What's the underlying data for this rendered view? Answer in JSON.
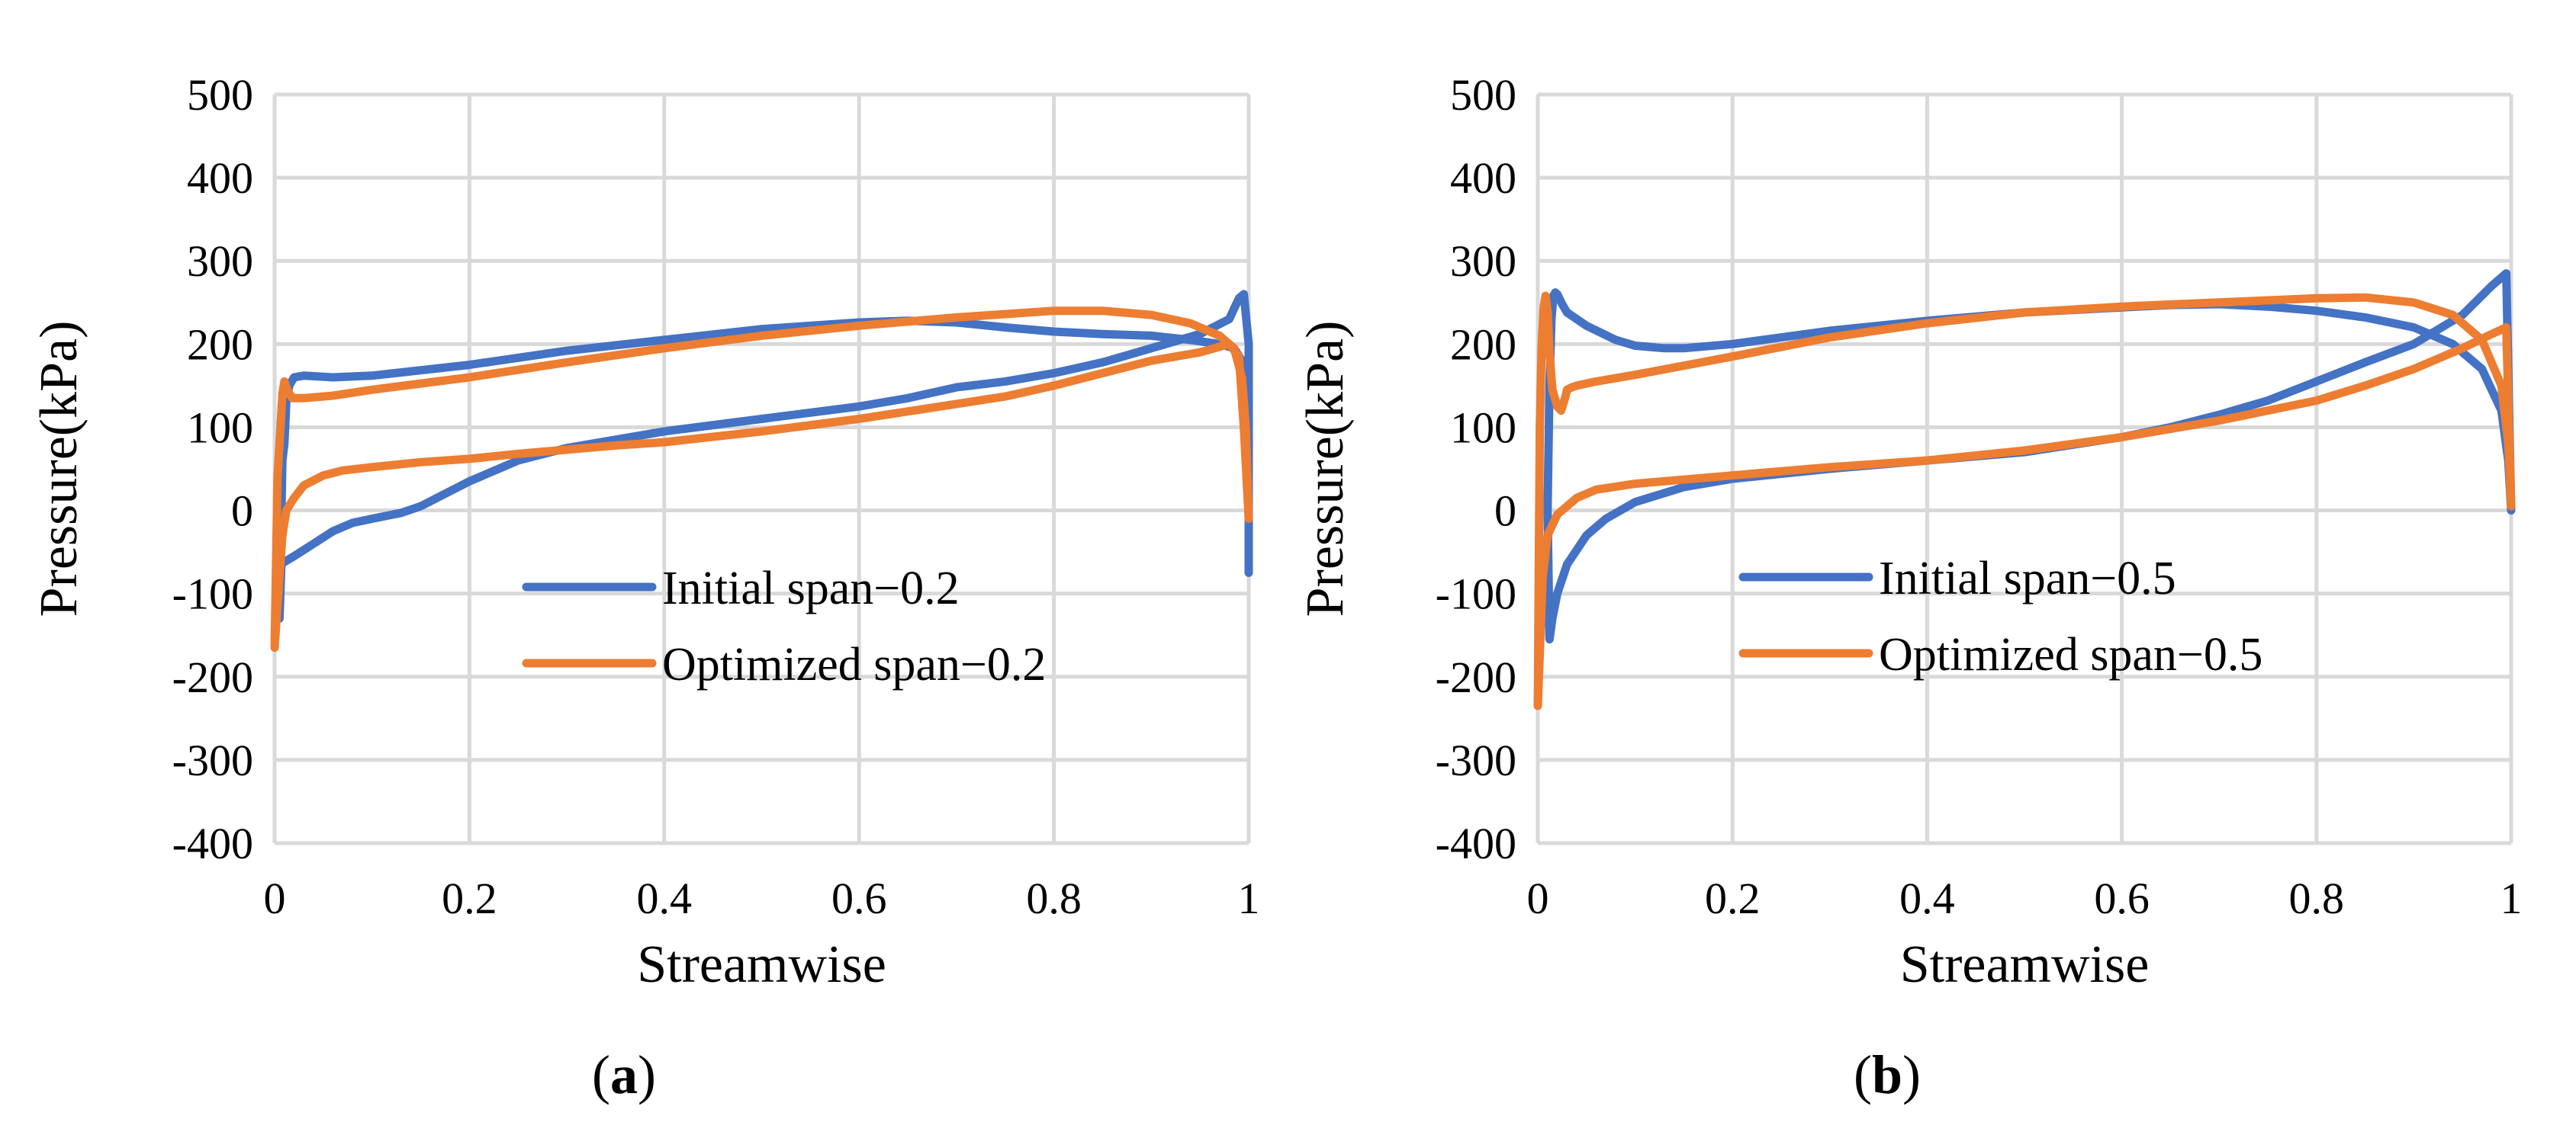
{
  "colors": {
    "initial": "#4472C4",
    "optimized": "#ED7D31",
    "grid": "#d9d9d9"
  },
  "chart_data": [
    {
      "type": "line",
      "panel_label": "a",
      "xlabel": "Streamwise",
      "ylabel": "Pressure(kPa)",
      "xlim": [
        0,
        1
      ],
      "ylim": [
        -400,
        500
      ],
      "xticks": [
        0,
        0.2,
        0.4,
        0.6,
        0.8,
        1
      ],
      "xtick_labels": [
        "0",
        "0.2",
        "0.4",
        "0.6",
        "0.8",
        "1"
      ],
      "yticks": [
        -400,
        -300,
        -200,
        -100,
        0,
        100,
        200,
        300,
        400,
        500
      ],
      "ytick_labels": [
        "-400",
        "-300",
        "-200",
        "-100",
        "0",
        "100",
        "200",
        "300",
        "400",
        "500"
      ],
      "grid": true,
      "legend_position": "center-right",
      "series": [
        {
          "name": "Initial span−0.2",
          "color": "#4472C4",
          "x": [
            0.005,
            0.008,
            0.01,
            0.012,
            0.015,
            0.02,
            0.03,
            0.06,
            0.1,
            0.2,
            0.3,
            0.4,
            0.5,
            0.6,
            0.65,
            0.7,
            0.75,
            0.8,
            0.85,
            0.9,
            0.94,
            0.97,
            0.985,
            0.993,
            0.997,
            1.0,
            1.0,
            1.0,
            0.995,
            0.99,
            0.98,
            0.95,
            0.9,
            0.85,
            0.8,
            0.75,
            0.7,
            0.65,
            0.6,
            0.5,
            0.4,
            0.35,
            0.3,
            0.25,
            0.2,
            0.15,
            0.13,
            0.1,
            0.08,
            0.06,
            0.04,
            0.02,
            0.01,
            0.007,
            0.005
          ],
          "y": [
            -130,
            60,
            80,
            130,
            150,
            160,
            162,
            160,
            162,
            175,
            192,
            205,
            218,
            226,
            228,
            226,
            220,
            215,
            212,
            210,
            205,
            200,
            195,
            180,
            130,
            0,
            -75,
            200,
            260,
            255,
            230,
            212,
            195,
            178,
            165,
            155,
            148,
            135,
            125,
            110,
            95,
            85,
            75,
            60,
            35,
            5,
            -3,
            -10,
            -15,
            -25,
            -40,
            -55,
            -62,
            -65,
            -130
          ]
        },
        {
          "name": "Optimized span−0.2",
          "color": "#ED7D31",
          "x": [
            0.0,
            0.003,
            0.006,
            0.008,
            0.01,
            0.013,
            0.018,
            0.03,
            0.06,
            0.1,
            0.2,
            0.3,
            0.4,
            0.5,
            0.6,
            0.7,
            0.8,
            0.85,
            0.9,
            0.94,
            0.97,
            0.985,
            0.993,
            0.997,
            1.0,
            0.995,
            0.99,
            0.98,
            0.95,
            0.9,
            0.85,
            0.8,
            0.75,
            0.7,
            0.6,
            0.5,
            0.4,
            0.35,
            0.3,
            0.25,
            0.2,
            0.15,
            0.1,
            0.07,
            0.05,
            0.03,
            0.02,
            0.012,
            0.008,
            0.005,
            0.0
          ],
          "y": [
            -165,
            40,
            100,
            140,
            155,
            145,
            135,
            135,
            138,
            145,
            160,
            178,
            195,
            210,
            222,
            232,
            240,
            240,
            235,
            225,
            210,
            195,
            160,
            100,
            -10,
            100,
            185,
            200,
            190,
            180,
            165,
            150,
            137,
            128,
            110,
            95,
            82,
            78,
            73,
            68,
            62,
            58,
            52,
            48,
            42,
            30,
            15,
            0,
            -30,
            -80,
            -165
          ]
        }
      ]
    },
    {
      "type": "line",
      "panel_label": "b",
      "xlabel": "Streamwise",
      "ylabel": "Pressure(kPa)",
      "xlim": [
        0,
        1
      ],
      "ylim": [
        -400,
        500
      ],
      "xticks": [
        0,
        0.2,
        0.4,
        0.6,
        0.8,
        1
      ],
      "xtick_labels": [
        "0",
        "0.2",
        "0.4",
        "0.6",
        "0.8",
        "1"
      ],
      "yticks": [
        -400,
        -300,
        -200,
        -100,
        0,
        100,
        200,
        300,
        400,
        500
      ],
      "ytick_labels": [
        "-400",
        "-300",
        "-200",
        "-100",
        "0",
        "100",
        "200",
        "300",
        "400",
        "500"
      ],
      "grid": true,
      "legend_position": "center",
      "series": [
        {
          "name": "Initial span−0.5",
          "color": "#4472C4",
          "x": [
            0.01,
            0.012,
            0.014,
            0.016,
            0.018,
            0.02,
            0.025,
            0.03,
            0.05,
            0.08,
            0.1,
            0.13,
            0.15,
            0.2,
            0.3,
            0.4,
            0.5,
            0.6,
            0.65,
            0.7,
            0.75,
            0.8,
            0.85,
            0.9,
            0.94,
            0.97,
            0.99,
            0.997,
            1.0,
            0.995,
            0.98,
            0.95,
            0.9,
            0.85,
            0.8,
            0.75,
            0.7,
            0.65,
            0.6,
            0.5,
            0.4,
            0.3,
            0.2,
            0.15,
            0.1,
            0.07,
            0.05,
            0.03,
            0.02,
            0.015,
            0.012,
            0.01
          ],
          "y": [
            0,
            150,
            230,
            258,
            262,
            260,
            248,
            238,
            222,
            205,
            198,
            195,
            195,
            200,
            216,
            228,
            238,
            244,
            247,
            248,
            245,
            240,
            232,
            220,
            200,
            170,
            120,
            60,
            0,
            285,
            270,
            235,
            200,
            178,
            155,
            132,
            115,
            100,
            88,
            70,
            60,
            50,
            38,
            28,
            10,
            -10,
            -30,
            -65,
            -100,
            -130,
            -155,
            0
          ]
        },
        {
          "name": "Optimized span−0.5",
          "color": "#ED7D31",
          "x": [
            0.0,
            0.002,
            0.004,
            0.006,
            0.008,
            0.01,
            0.012,
            0.015,
            0.02,
            0.024,
            0.028,
            0.03,
            0.035,
            0.04,
            0.06,
            0.1,
            0.2,
            0.3,
            0.4,
            0.5,
            0.6,
            0.7,
            0.8,
            0.85,
            0.9,
            0.94,
            0.97,
            0.99,
            0.997,
            1.0,
            0.995,
            0.98,
            0.95,
            0.9,
            0.85,
            0.8,
            0.7,
            0.6,
            0.5,
            0.4,
            0.3,
            0.2,
            0.1,
            0.06,
            0.04,
            0.02,
            0.01,
            0.005,
            0.0
          ],
          "y": [
            -235,
            100,
            200,
            245,
            258,
            240,
            190,
            145,
            125,
            120,
            135,
            145,
            148,
            150,
            155,
            163,
            185,
            208,
            225,
            238,
            245,
            250,
            255,
            256,
            250,
            235,
            205,
            150,
            80,
            5,
            220,
            212,
            195,
            170,
            150,
            132,
            108,
            88,
            72,
            60,
            52,
            42,
            32,
            25,
            15,
            -5,
            -30,
            -80,
            -235
          ]
        }
      ]
    }
  ]
}
